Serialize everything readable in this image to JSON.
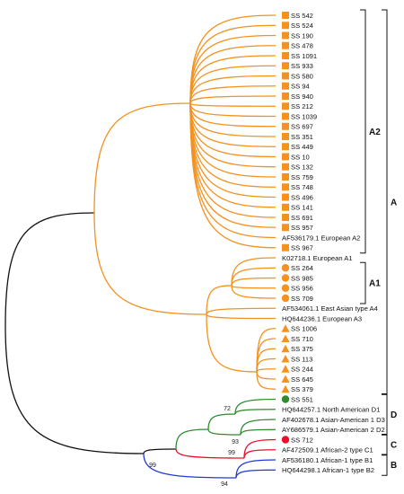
{
  "colors": {
    "orange": "#f5911e",
    "green": "#2e8b2e",
    "red": "#e8102a",
    "blue": "#1f3ad8",
    "black": "#111111"
  },
  "taxa": [
    {
      "label": "SS 542",
      "marker": "square",
      "color": "orange"
    },
    {
      "label": "SS 524",
      "marker": "square",
      "color": "orange"
    },
    {
      "label": "SS 190",
      "marker": "square",
      "color": "orange"
    },
    {
      "label": "SS 478",
      "marker": "square",
      "color": "orange"
    },
    {
      "label": "SS 1091",
      "marker": "square",
      "color": "orange"
    },
    {
      "label": "SS 933",
      "marker": "square",
      "color": "orange"
    },
    {
      "label": "SS 580",
      "marker": "square",
      "color": "orange"
    },
    {
      "label": "SS 94",
      "marker": "square",
      "color": "orange"
    },
    {
      "label": "SS 940",
      "marker": "square",
      "color": "orange"
    },
    {
      "label": "SS 212",
      "marker": "square",
      "color": "orange"
    },
    {
      "label": "SS 1039",
      "marker": "square",
      "color": "orange"
    },
    {
      "label": "SS 697",
      "marker": "square",
      "color": "orange"
    },
    {
      "label": "SS 351",
      "marker": "square",
      "color": "orange"
    },
    {
      "label": "SS 449",
      "marker": "square",
      "color": "orange"
    },
    {
      "label": "SS 10",
      "marker": "square",
      "color": "orange"
    },
    {
      "label": "SS 132",
      "marker": "square",
      "color": "orange"
    },
    {
      "label": "SS 759",
      "marker": "square",
      "color": "orange"
    },
    {
      "label": "SS 748",
      "marker": "square",
      "color": "orange"
    },
    {
      "label": "SS 496",
      "marker": "square",
      "color": "orange"
    },
    {
      "label": "SS 141",
      "marker": "square",
      "color": "orange"
    },
    {
      "label": "SS 691",
      "marker": "square",
      "color": "orange"
    },
    {
      "label": "SS 957",
      "marker": "square",
      "color": "orange"
    },
    {
      "label": "AF536179.1 European A2",
      "marker": "none",
      "color": "orange"
    },
    {
      "label": "SS 967",
      "marker": "square",
      "color": "orange"
    },
    {
      "label": "K02718.1 European A1",
      "marker": "none",
      "color": "orange"
    },
    {
      "label": "SS 264",
      "marker": "circle",
      "color": "orange"
    },
    {
      "label": "SS 985",
      "marker": "circle",
      "color": "orange"
    },
    {
      "label": "SS 956",
      "marker": "circle",
      "color": "orange"
    },
    {
      "label": "SS 709",
      "marker": "circle",
      "color": "orange"
    },
    {
      "label": "AF534061.1 East Asian type A4",
      "marker": "none",
      "color": "orange"
    },
    {
      "label": "HQ644236.1 European A3",
      "marker": "none",
      "color": "orange"
    },
    {
      "label": "SS 1006",
      "marker": "triangle",
      "color": "orange"
    },
    {
      "label": "SS 710",
      "marker": "triangle",
      "color": "orange"
    },
    {
      "label": "SS 375",
      "marker": "triangle",
      "color": "orange"
    },
    {
      "label": "SS 113",
      "marker": "triangle",
      "color": "orange"
    },
    {
      "label": "SS 244",
      "marker": "triangle",
      "color": "orange"
    },
    {
      "label": "SS 645",
      "marker": "triangle",
      "color": "orange"
    },
    {
      "label": "SS 379",
      "marker": "triangle",
      "color": "orange"
    },
    {
      "label": "SS 551",
      "marker": "circle",
      "color": "green"
    },
    {
      "label": "HQ644257.1 North American D1",
      "marker": "none",
      "color": "green"
    },
    {
      "label": "AF402678.1 Asian-American 1 D3",
      "marker": "none",
      "color": "green"
    },
    {
      "label": "AY686579.1 Asian-American 2 D2",
      "marker": "none",
      "color": "green"
    },
    {
      "label": "SS 712",
      "marker": "circle",
      "color": "red"
    },
    {
      "label": "AF472509.1 African-2 type C1",
      "marker": "none",
      "color": "red"
    },
    {
      "label": "AF536180.1 African-1 type B1",
      "marker": "none",
      "color": "blue"
    },
    {
      "label": "HQ644298.1 African-1 type B2",
      "marker": "none",
      "color": "blue"
    }
  ],
  "bootstrap": [
    {
      "value": "72",
      "node": "d_top"
    },
    {
      "value": "93",
      "node": "d_low"
    },
    {
      "value": "99",
      "node": "cd"
    },
    {
      "value": "99",
      "node": "c"
    },
    {
      "value": "94",
      "node": "b"
    }
  ],
  "groups": [
    {
      "label": "A2",
      "from": 0,
      "to": 23,
      "level": 1
    },
    {
      "label": "A1",
      "from": 25,
      "to": 28,
      "level": 1
    },
    {
      "label": "A",
      "from": 0,
      "to": 37,
      "level": 2
    },
    {
      "label": "D",
      "from": 38,
      "to": 41,
      "level": 2
    },
    {
      "label": "C",
      "from": 42,
      "to": 43,
      "level": 2
    },
    {
      "label": "B",
      "from": 44,
      "to": 45,
      "level": 2
    }
  ]
}
